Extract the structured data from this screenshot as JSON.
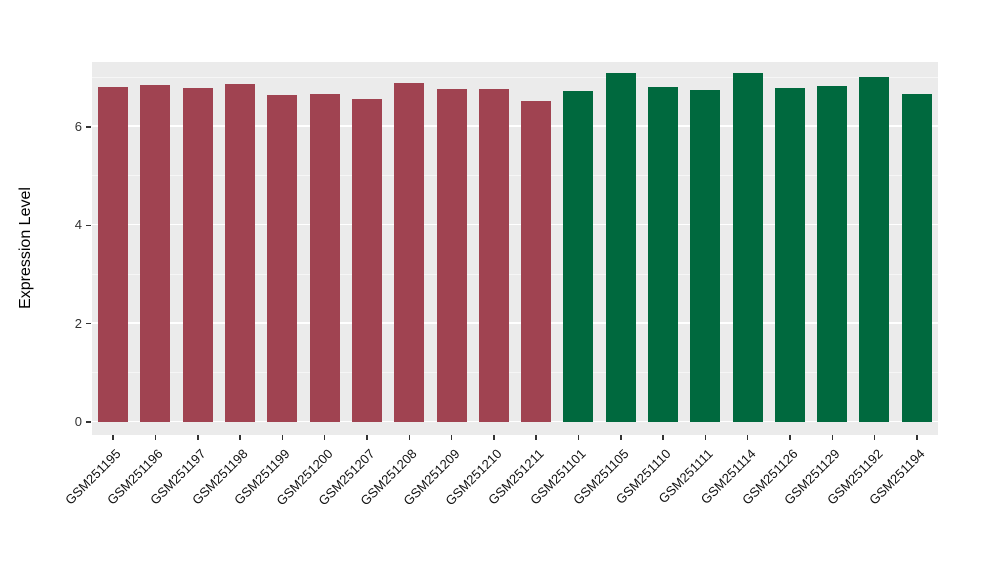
{
  "chart_data": {
    "type": "bar",
    "title": "",
    "ylabel": "Expression Level",
    "xlabel": "",
    "ylim": [
      0,
      7.3
    ],
    "yticks": [
      0,
      2,
      4,
      6
    ],
    "yticks_minor": [
      1,
      3,
      5,
      7
    ],
    "grid": true,
    "legend_position": "none",
    "panel_background": "#EBEBEB",
    "gridline_color": "#FFFFFF",
    "categories": [
      "GSM251195",
      "GSM251196",
      "GSM251197",
      "GSM251198",
      "GSM251199",
      "GSM251200",
      "GSM251207",
      "GSM251208",
      "GSM251209",
      "GSM251210",
      "GSM251211",
      "GSM251101",
      "GSM251105",
      "GSM251110",
      "GSM251111",
      "GSM251114",
      "GSM251126",
      "GSM251129",
      "GSM251192",
      "GSM251194"
    ],
    "values": [
      6.82,
      6.86,
      6.8,
      6.88,
      6.65,
      6.67,
      6.57,
      6.9,
      6.78,
      6.78,
      6.53,
      6.73,
      7.1,
      6.82,
      6.76,
      7.1,
      6.8,
      6.84,
      7.02,
      6.67
    ],
    "groups": [
      "group1",
      "group1",
      "group1",
      "group1",
      "group1",
      "group1",
      "group1",
      "group1",
      "group1",
      "group1",
      "group1",
      "group2",
      "group2",
      "group2",
      "group2",
      "group2",
      "group2",
      "group2",
      "group2",
      "group2"
    ],
    "group_colors": {
      "group1": "#A04351",
      "group2": "#00693E"
    }
  }
}
